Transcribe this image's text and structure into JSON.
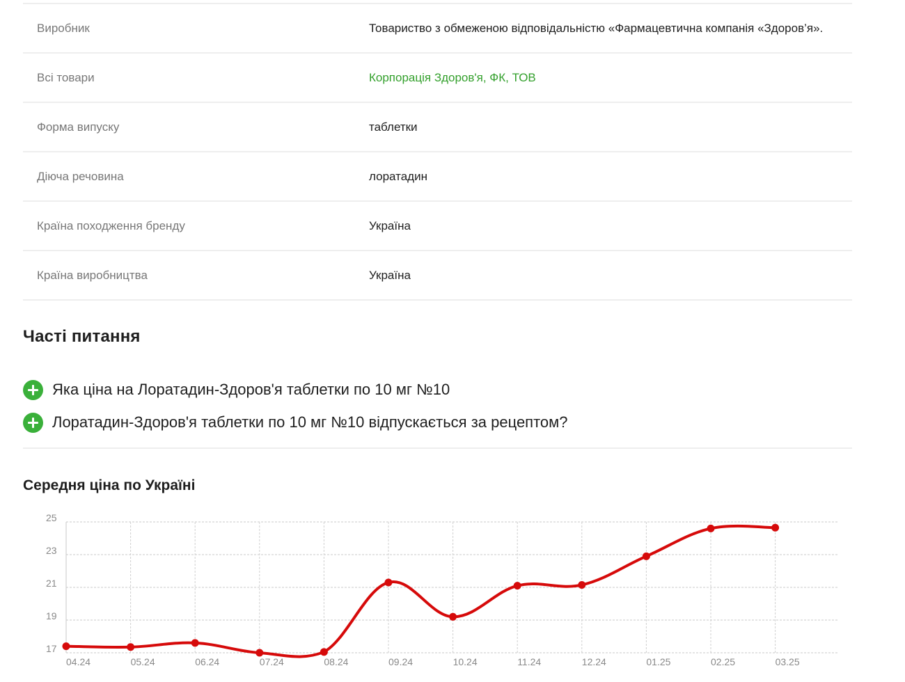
{
  "attributes": [
    {
      "label": "Виробник",
      "value": "Товариство з обмеженою відповідальністю «Фармацевтична компанія «Здоров’я».",
      "link": false
    },
    {
      "label": "Всі товари",
      "value": "Корпорація Здоров'я, ФК, ТОВ",
      "link": true
    },
    {
      "label": "Форма випуску",
      "value": "таблетки",
      "link": false
    },
    {
      "label": "Діюча речовина",
      "value": "лоратадин",
      "link": false
    },
    {
      "label": "Країна походження бренду",
      "value": "Україна",
      "link": false
    },
    {
      "label": "Країна виробництва",
      "value": "Україна",
      "link": false
    }
  ],
  "faq": {
    "title": "Часті питання",
    "items": [
      {
        "question": "Яка ціна на Лоратадин-Здоров'я таблетки по 10 мг №10",
        "icon": "plus-icon"
      },
      {
        "question": "Лоратадин-Здоров'я таблетки по 10 мг №10 відпускається за рецептом?",
        "icon": "plus-icon"
      }
    ]
  },
  "colors": {
    "accent_green": "#3ab03a",
    "link_green": "#33a02c",
    "line_red": "#d60a0a"
  },
  "chart_data": {
    "type": "line",
    "title": "Середня ціна по Україні",
    "categories": [
      "04.24",
      "05.24",
      "06.24",
      "07.24",
      "08.24",
      "09.24",
      "10.24",
      "11.24",
      "12.24",
      "01.25",
      "02.25",
      "03.25"
    ],
    "yticks": [
      17,
      19,
      21,
      23,
      25
    ],
    "ylim": [
      17,
      25
    ],
    "grid": true,
    "series": [
      {
        "values": [
          17.4,
          17.35,
          17.6,
          17.0,
          17.05,
          21.3,
          19.2,
          21.1,
          21.15,
          22.9,
          24.6,
          24.65
        ]
      }
    ]
  }
}
